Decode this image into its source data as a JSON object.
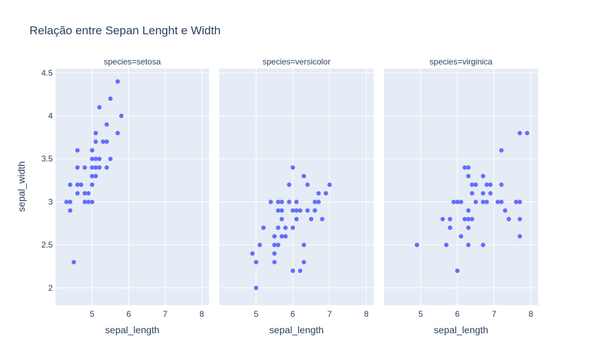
{
  "title": "Relação entre Sepan Lenght e Width",
  "chart_data": {
    "type": "scatter",
    "title": "Relação entre Sepan Lenght e Width",
    "xlabel": "sepal_length",
    "ylabel": "sepal_width",
    "xlim": [
      4,
      8.2
    ],
    "ylim": [
      1.8,
      4.55
    ],
    "x_ticks": [
      5,
      6,
      7,
      8
    ],
    "y_ticks": [
      2,
      2.5,
      3,
      3.5,
      4,
      4.5
    ],
    "grid": true,
    "marker_color": "#636efa",
    "facets": [
      {
        "label": "species=setosa",
        "points": [
          [
            4.3,
            3.0
          ],
          [
            4.4,
            2.9
          ],
          [
            4.4,
            3.0
          ],
          [
            4.4,
            3.2
          ],
          [
            4.5,
            2.3
          ],
          [
            4.6,
            3.1
          ],
          [
            4.6,
            3.2
          ],
          [
            4.6,
            3.4
          ],
          [
            4.6,
            3.6
          ],
          [
            4.7,
            3.2
          ],
          [
            4.8,
            3.0
          ],
          [
            4.8,
            3.1
          ],
          [
            4.8,
            3.4
          ],
          [
            4.9,
            3.0
          ],
          [
            4.9,
            3.1
          ],
          [
            5.0,
            3.0
          ],
          [
            5.0,
            3.2
          ],
          [
            5.0,
            3.3
          ],
          [
            5.0,
            3.4
          ],
          [
            5.0,
            3.5
          ],
          [
            5.0,
            3.6
          ],
          [
            5.1,
            3.3
          ],
          [
            5.1,
            3.4
          ],
          [
            5.1,
            3.5
          ],
          [
            5.1,
            3.7
          ],
          [
            5.1,
            3.8
          ],
          [
            5.2,
            3.4
          ],
          [
            5.2,
            3.5
          ],
          [
            5.2,
            4.1
          ],
          [
            5.3,
            3.7
          ],
          [
            5.4,
            3.4
          ],
          [
            5.4,
            3.7
          ],
          [
            5.4,
            3.9
          ],
          [
            5.5,
            3.5
          ],
          [
            5.5,
            4.2
          ],
          [
            5.7,
            3.8
          ],
          [
            5.7,
            4.4
          ],
          [
            5.8,
            4.0
          ]
        ]
      },
      {
        "label": "species=versicolor",
        "points": [
          [
            4.9,
            2.4
          ],
          [
            5.0,
            2.0
          ],
          [
            5.0,
            2.3
          ],
          [
            5.1,
            2.5
          ],
          [
            5.2,
            2.7
          ],
          [
            5.4,
            3.0
          ],
          [
            5.5,
            2.3
          ],
          [
            5.5,
            2.4
          ],
          [
            5.5,
            2.5
          ],
          [
            5.5,
            2.6
          ],
          [
            5.6,
            2.5
          ],
          [
            5.6,
            2.7
          ],
          [
            5.6,
            2.9
          ],
          [
            5.6,
            3.0
          ],
          [
            5.7,
            2.6
          ],
          [
            5.7,
            2.8
          ],
          [
            5.7,
            2.9
          ],
          [
            5.7,
            3.0
          ],
          [
            5.8,
            2.6
          ],
          [
            5.8,
            2.7
          ],
          [
            5.9,
            3.0
          ],
          [
            5.9,
            3.2
          ],
          [
            6.0,
            2.2
          ],
          [
            6.0,
            2.7
          ],
          [
            6.0,
            2.9
          ],
          [
            6.0,
            3.4
          ],
          [
            6.1,
            2.8
          ],
          [
            6.1,
            2.9
          ],
          [
            6.1,
            3.0
          ],
          [
            6.2,
            2.2
          ],
          [
            6.2,
            2.9
          ],
          [
            6.3,
            2.3
          ],
          [
            6.3,
            2.5
          ],
          [
            6.3,
            3.3
          ],
          [
            6.4,
            2.9
          ],
          [
            6.4,
            3.2
          ],
          [
            6.5,
            2.8
          ],
          [
            6.6,
            2.9
          ],
          [
            6.6,
            3.0
          ],
          [
            6.7,
            3.0
          ],
          [
            6.7,
            3.1
          ],
          [
            6.8,
            2.8
          ],
          [
            6.9,
            3.1
          ],
          [
            7.0,
            3.2
          ]
        ]
      },
      {
        "label": "species=virginica",
        "points": [
          [
            4.9,
            2.5
          ],
          [
            5.6,
            2.8
          ],
          [
            5.7,
            2.5
          ],
          [
            5.8,
            2.7
          ],
          [
            5.8,
            2.8
          ],
          [
            5.9,
            3.0
          ],
          [
            6.0,
            2.2
          ],
          [
            6.0,
            3.0
          ],
          [
            6.1,
            2.6
          ],
          [
            6.1,
            3.0
          ],
          [
            6.2,
            2.8
          ],
          [
            6.2,
            3.4
          ],
          [
            6.3,
            2.5
          ],
          [
            6.3,
            2.7
          ],
          [
            6.3,
            2.8
          ],
          [
            6.3,
            2.9
          ],
          [
            6.3,
            3.3
          ],
          [
            6.3,
            3.4
          ],
          [
            6.4,
            2.8
          ],
          [
            6.4,
            3.1
          ],
          [
            6.4,
            3.2
          ],
          [
            6.5,
            3.0
          ],
          [
            6.5,
            3.2
          ],
          [
            6.7,
            2.5
          ],
          [
            6.7,
            3.0
          ],
          [
            6.7,
            3.1
          ],
          [
            6.7,
            3.3
          ],
          [
            6.8,
            3.0
          ],
          [
            6.8,
            3.2
          ],
          [
            6.9,
            3.1
          ],
          [
            6.9,
            3.2
          ],
          [
            7.1,
            3.0
          ],
          [
            7.2,
            3.0
          ],
          [
            7.2,
            3.2
          ],
          [
            7.2,
            3.6
          ],
          [
            7.3,
            2.9
          ],
          [
            7.4,
            2.8
          ],
          [
            7.6,
            3.0
          ],
          [
            7.7,
            2.6
          ],
          [
            7.7,
            2.8
          ],
          [
            7.7,
            3.0
          ],
          [
            7.7,
            3.8
          ],
          [
            7.9,
            3.8
          ]
        ]
      }
    ]
  }
}
